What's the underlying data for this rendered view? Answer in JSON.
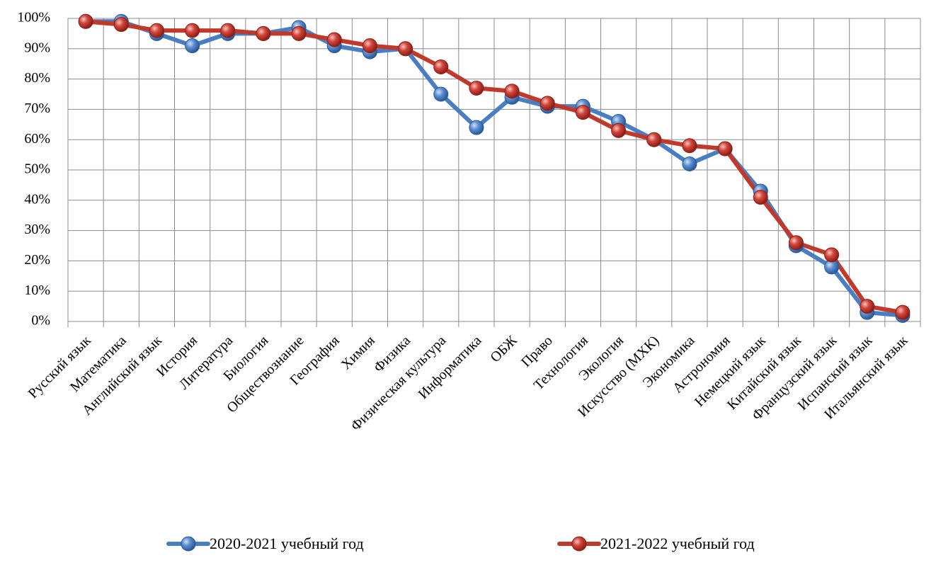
{
  "chart_data": {
    "type": "line",
    "title": "",
    "xlabel": "",
    "ylabel": "",
    "ylim": [
      0,
      100
    ],
    "y_ticks": [
      "0%",
      "10%",
      "20%",
      "30%",
      "40%",
      "50%",
      "60%",
      "70%",
      "80%",
      "90%",
      "100%"
    ],
    "grid": true,
    "legend_position": "bottom",
    "categories": [
      "Русский язык",
      "Математика",
      "Английский язык",
      "История",
      "Литература",
      "Биология",
      "Обществознание",
      "География",
      "Химия",
      "Физика",
      "Физическая культура",
      "Информатика",
      "ОБЖ",
      "Право",
      "Технология",
      "Экология",
      "Искусство (МХК)",
      "Экономика",
      "Астрономия",
      "Немецкий язык",
      "Китайский язык",
      "Французский язык",
      "Испанский язык",
      "Итальянский язык"
    ],
    "series": [
      {
        "name": "2020-2021 учебный год",
        "color": "#4a7ec2",
        "values": [
          99,
          99,
          95,
          91,
          95,
          95,
          97,
          91,
          89,
          90,
          75,
          64,
          74,
          71,
          71,
          66,
          60,
          52,
          57,
          43,
          25,
          18,
          3,
          2
        ]
      },
      {
        "name": "2021-2022 учебный год",
        "color": "#c0392b",
        "values": [
          99,
          98,
          96,
          96,
          96,
          95,
          95,
          93,
          91,
          90,
          84,
          77,
          76,
          72,
          69,
          63,
          60,
          58,
          57,
          41,
          26,
          22,
          5,
          3
        ]
      }
    ]
  }
}
